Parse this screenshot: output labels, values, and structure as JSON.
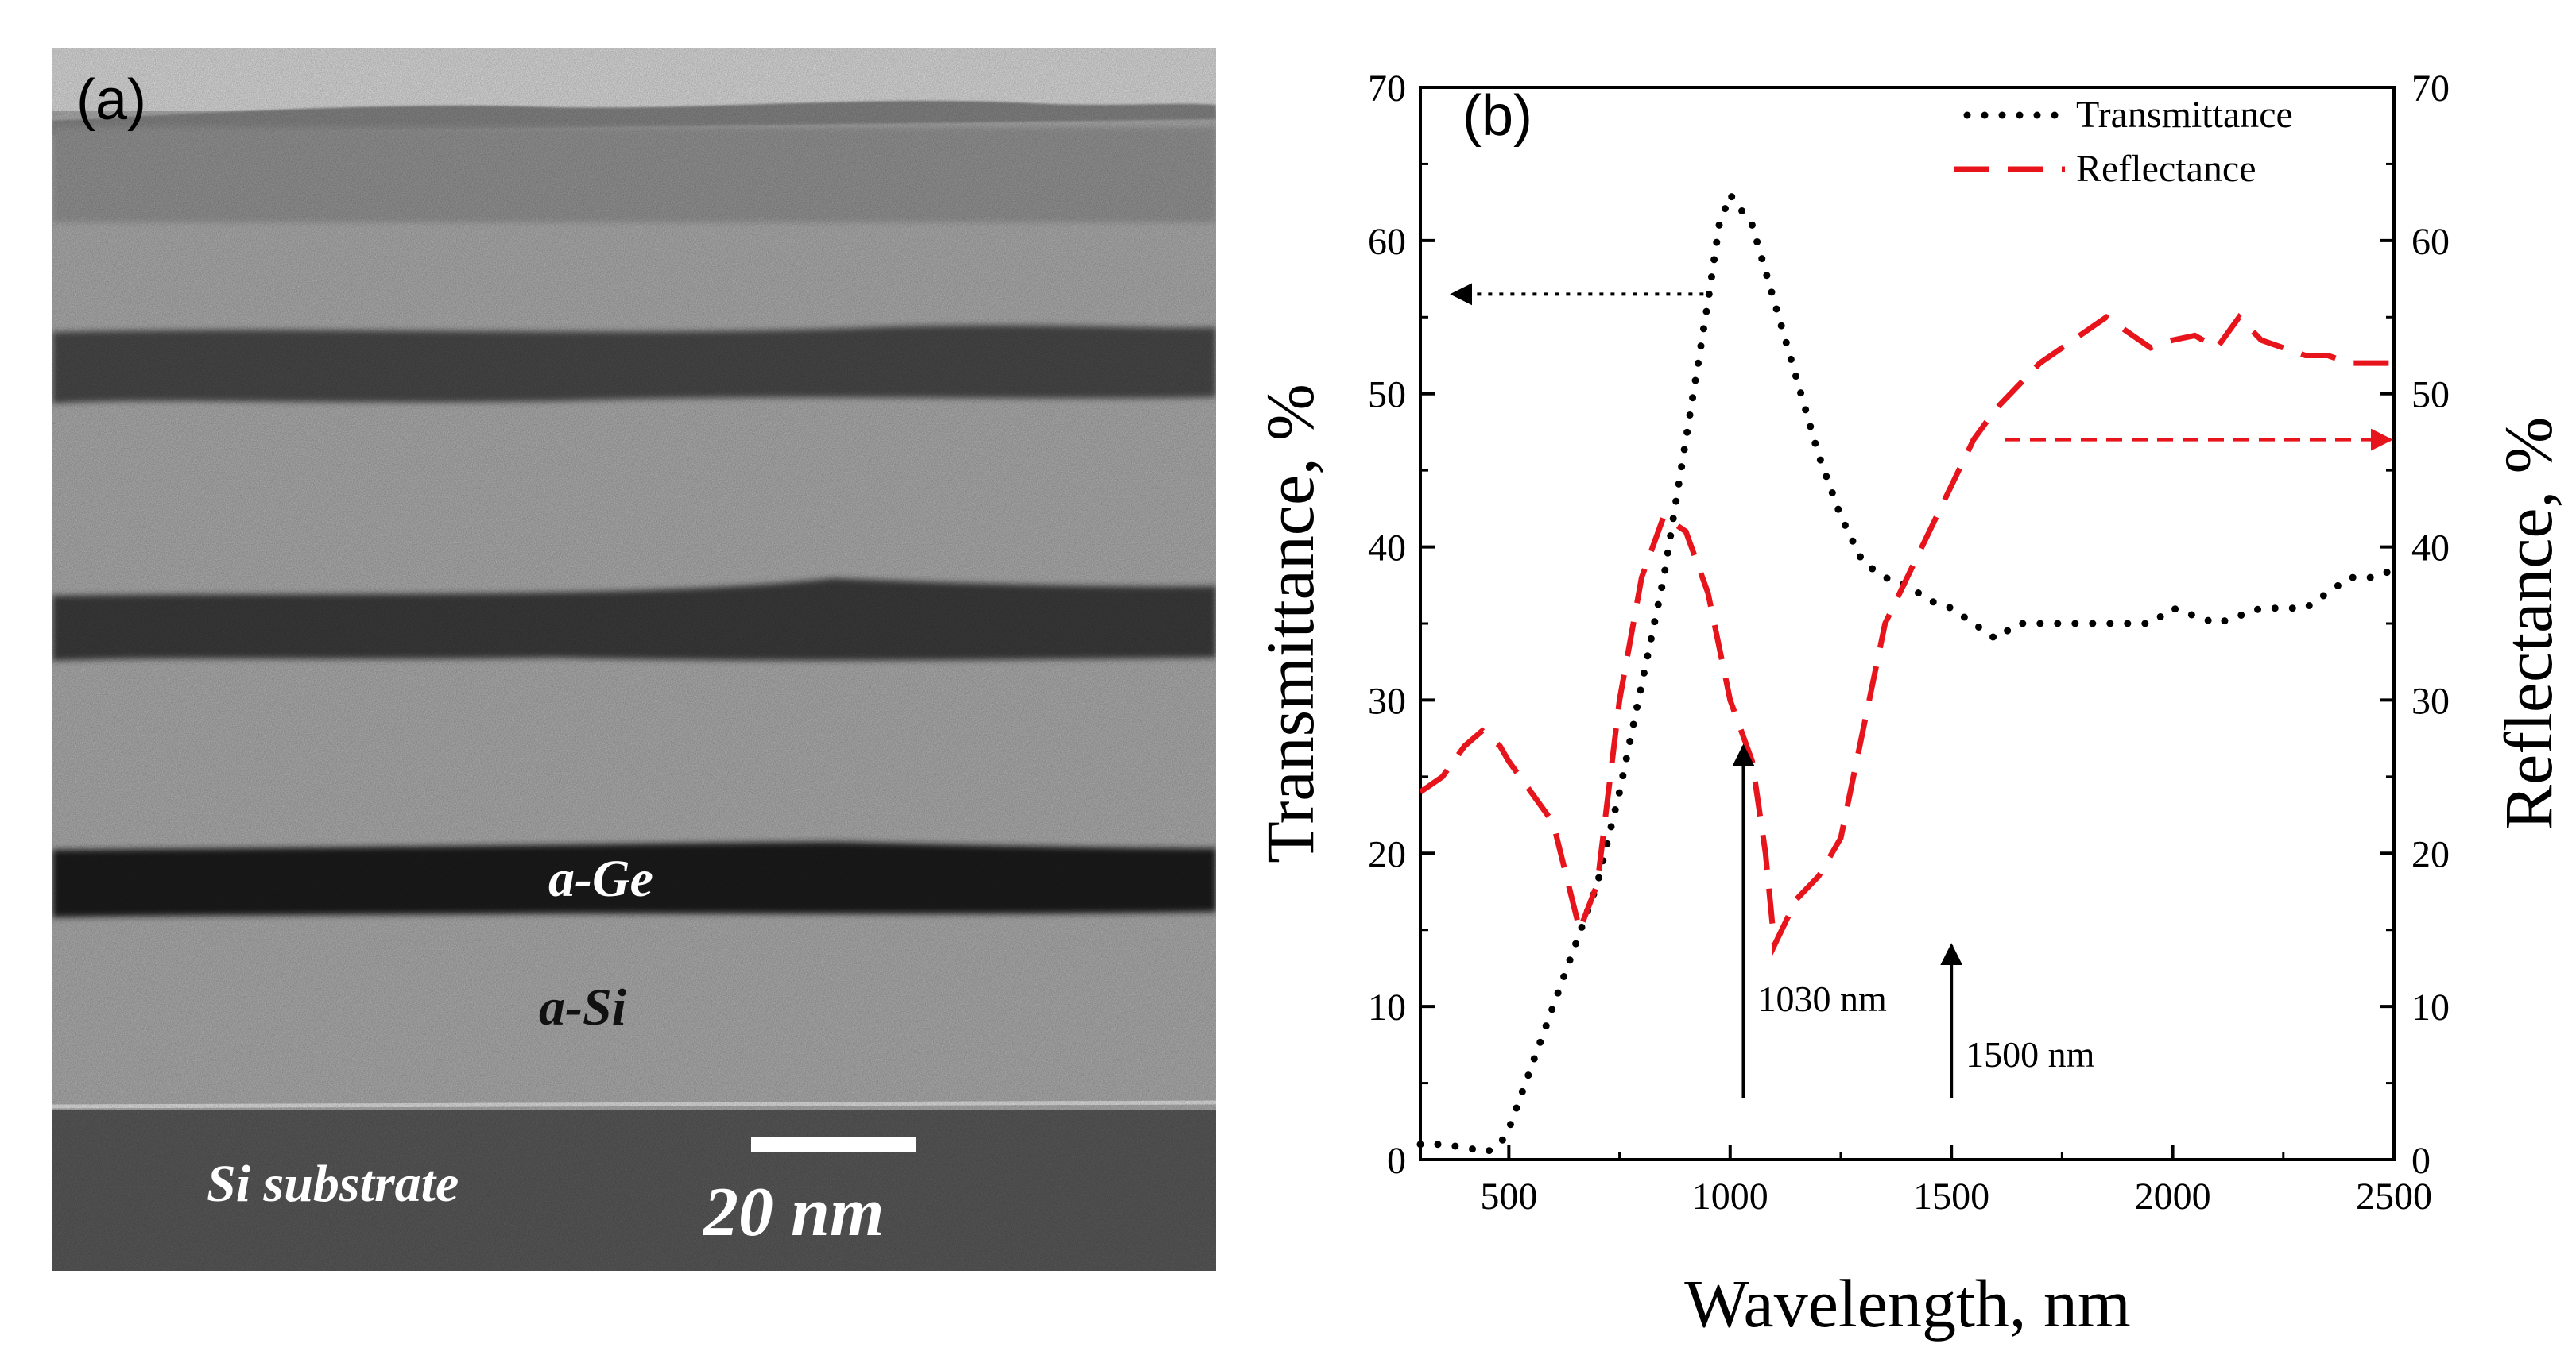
{
  "panel_a": {
    "label": "(a)",
    "layer_ge": "a-Ge",
    "layer_si": "a-Si",
    "substrate": "Si substrate",
    "scale_bar": "20 nm"
  },
  "chart_data": {
    "type": "line",
    "panel_label": "(b)",
    "xlabel": "Wavelength, nm",
    "ylabel_left": "Transmittance, %",
    "ylabel_right": "Reflectance, %",
    "xlim": [
      300,
      2500
    ],
    "ylim": [
      0,
      70
    ],
    "xticks": [
      500,
      1000,
      1500,
      2000,
      2500
    ],
    "yticks": [
      0,
      10,
      20,
      30,
      40,
      50,
      60,
      70
    ],
    "grid": false,
    "legend_position": "top-right",
    "series": [
      {
        "name": "Transmittance",
        "style": "dotted",
        "color": "#000000",
        "axis": "left",
        "x": [
          300,
          350,
          400,
          450,
          480,
          500,
          550,
          600,
          650,
          700,
          750,
          800,
          850,
          900,
          950,
          975,
          1000,
          1050,
          1100,
          1150,
          1200,
          1250,
          1300,
          1350,
          1400,
          1450,
          1500,
          1550,
          1600,
          1650,
          1700,
          1750,
          1800,
          1850,
          1900,
          1950,
          2000,
          2050,
          2100,
          2150,
          2200,
          2250,
          2300,
          2350,
          2400,
          2450,
          2500
        ],
        "values": [
          1,
          1,
          0.8,
          0.5,
          1,
          2,
          6,
          10,
          14,
          18,
          24,
          31,
          38,
          47,
          56,
          61,
          63,
          61,
          56,
          51,
          46,
          42,
          39,
          38,
          37.5,
          36.5,
          36,
          35,
          34,
          35,
          35,
          35,
          35,
          35,
          35,
          35,
          36,
          35.5,
          35,
          35.5,
          36,
          36,
          36,
          37,
          38,
          38,
          38.5
        ]
      },
      {
        "name": "Reflectance",
        "style": "dashed",
        "color": "#e8141c",
        "axis": "right",
        "x": [
          300,
          350,
          400,
          440,
          480,
          500,
          550,
          600,
          660,
          700,
          750,
          800,
          850,
          900,
          950,
          1000,
          1050,
          1080,
          1100,
          1150,
          1200,
          1250,
          1300,
          1350,
          1400,
          1450,
          1500,
          1550,
          1600,
          1650,
          1700,
          1750,
          1800,
          1850,
          1900,
          1950,
          2000,
          2050,
          2100,
          2150,
          2200,
          2250,
          2300,
          2350,
          2400,
          2450,
          2500
        ],
        "values": [
          24,
          25,
          27,
          28,
          27,
          26,
          24,
          22,
          15,
          18,
          30,
          38,
          42,
          41,
          37,
          30,
          26,
          20,
          14,
          17,
          18.5,
          21,
          28,
          35,
          38,
          41,
          44,
          47,
          49,
          50.5,
          52,
          53,
          54,
          55,
          54,
          53,
          53.5,
          53.8,
          53,
          55,
          53.5,
          53,
          52.5,
          52.5,
          52,
          52,
          52
        ]
      }
    ],
    "annotations": [
      {
        "text": "1030 nm",
        "x": 1030,
        "arrow_from": 4,
        "arrow_to": 27
      },
      {
        "text": "1500 nm",
        "x": 1500,
        "arrow_from": 4,
        "arrow_to": 14
      }
    ],
    "axis_arrows": [
      {
        "series": "Transmittance",
        "direction": "left",
        "y": 56.5,
        "x_start": 940,
        "x_end": 300
      },
      {
        "series": "Reflectance",
        "direction": "right",
        "y": 47,
        "x_start": 1620,
        "x_end": 2500
      }
    ]
  }
}
